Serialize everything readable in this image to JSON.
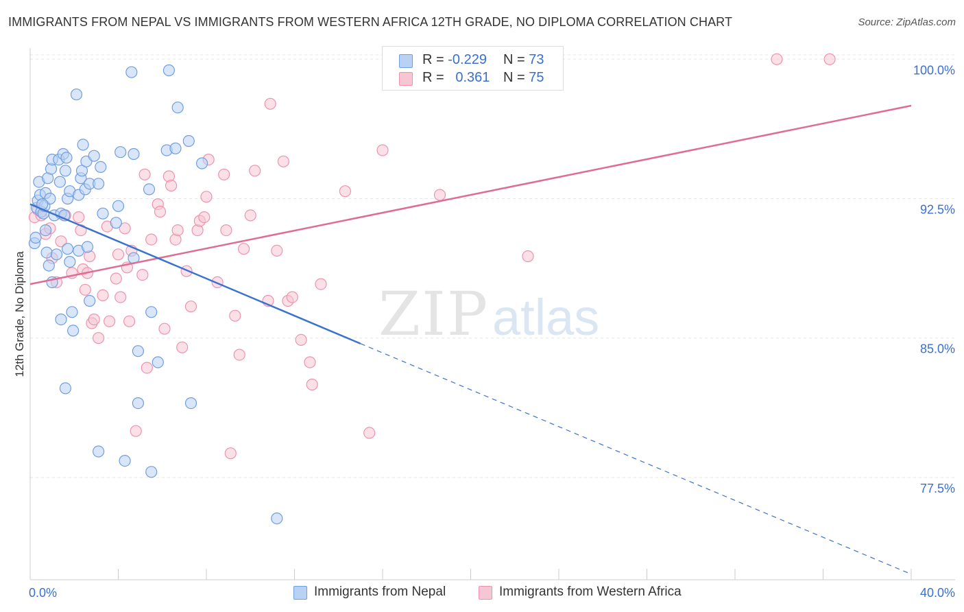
{
  "title": "IMMIGRANTS FROM NEPAL VS IMMIGRANTS FROM WESTERN AFRICA 12TH GRADE, NO DIPLOMA CORRELATION CHART",
  "source": "Source: ZipAtlas.com",
  "watermark": {
    "zip": "ZIP",
    "atlas": "atlas"
  },
  "legend": {
    "nepal": {
      "r_label": "R =",
      "r_value": "-0.229",
      "n_label": "N =",
      "n_value": "73"
    },
    "wafrica": {
      "r_label": "R =",
      "r_value": "0.361",
      "n_label": "N =",
      "n_value": "75"
    }
  },
  "colors": {
    "nepal_fill": "#b9d1f4",
    "nepal_stroke": "#6f9ee0",
    "nepal_line": "#3a72d0",
    "wafrica_fill": "#f7c6d4",
    "wafrica_stroke": "#ec94ae",
    "wafrica_line": "#e06b93",
    "tick_label": "#3a6fd0",
    "grid": "#e6e6e6"
  },
  "chart_data": {
    "type": "scatter",
    "title": "IMMIGRANTS FROM NEPAL VS IMMIGRANTS FROM WESTERN AFRICA 12TH GRADE, NO DIPLOMA CORRELATION CHART",
    "xlabel": "",
    "ylabel": "12th Grade, No Diploma",
    "xlim": [
      0,
      40
    ],
    "ylim": [
      72,
      100.6
    ],
    "x_tick_labels": [
      "0.0%",
      "40.0%"
    ],
    "y_ticks": [
      77.5,
      85.0,
      92.5,
      100.0
    ],
    "y_tick_labels": [
      "77.5%",
      "85.0%",
      "92.5%",
      "100.0%"
    ],
    "grid": true,
    "legend_position": "top-center",
    "series": [
      {
        "name": "Immigrants from Nepal",
        "points": [
          [
            0.2,
            90.1
          ],
          [
            0.25,
            90.4
          ],
          [
            0.3,
            92.0
          ],
          [
            0.35,
            92.4
          ],
          [
            0.4,
            93.4
          ],
          [
            0.45,
            92.7
          ],
          [
            0.5,
            91.8
          ],
          [
            0.6,
            91.7
          ],
          [
            0.65,
            92.1
          ],
          [
            0.7,
            92.8
          ],
          [
            0.7,
            90.8
          ],
          [
            0.75,
            89.6
          ],
          [
            0.8,
            93.6
          ],
          [
            0.85,
            88.9
          ],
          [
            0.9,
            92.5
          ],
          [
            0.95,
            94.1
          ],
          [
            1.0,
            94.6
          ],
          [
            1.0,
            88.0
          ],
          [
            1.1,
            91.6
          ],
          [
            1.2,
            89.5
          ],
          [
            1.3,
            94.6
          ],
          [
            1.35,
            93.4
          ],
          [
            1.4,
            91.7
          ],
          [
            1.4,
            86.0
          ],
          [
            1.5,
            94.9
          ],
          [
            1.55,
            91.6
          ],
          [
            1.6,
            94.0
          ],
          [
            1.65,
            94.7
          ],
          [
            1.7,
            89.8
          ],
          [
            1.7,
            92.5
          ],
          [
            1.8,
            92.9
          ],
          [
            1.8,
            89.1
          ],
          [
            1.9,
            86.4
          ],
          [
            1.95,
            85.4
          ],
          [
            2.1,
            98.1
          ],
          [
            2.2,
            89.7
          ],
          [
            2.2,
            92.7
          ],
          [
            2.3,
            93.6
          ],
          [
            2.35,
            94.0
          ],
          [
            2.4,
            95.4
          ],
          [
            2.5,
            93.0
          ],
          [
            2.55,
            94.5
          ],
          [
            2.6,
            89.9
          ],
          [
            2.7,
            87.0
          ],
          [
            2.7,
            93.3
          ],
          [
            2.9,
            94.8
          ],
          [
            3.1,
            93.3
          ],
          [
            3.2,
            94.2
          ],
          [
            3.3,
            91.7
          ],
          [
            3.9,
            91.2
          ],
          [
            4.0,
            92.1
          ],
          [
            4.1,
            95.0
          ],
          [
            4.3,
            78.4
          ],
          [
            4.6,
            99.3
          ],
          [
            4.7,
            89.3
          ],
          [
            4.7,
            94.9
          ],
          [
            4.9,
            84.3
          ],
          [
            5.4,
            93.0
          ],
          [
            5.5,
            86.4
          ],
          [
            5.5,
            77.8
          ],
          [
            5.8,
            83.7
          ],
          [
            6.2,
            95.1
          ],
          [
            6.3,
            99.4
          ],
          [
            6.6,
            95.2
          ],
          [
            6.7,
            97.4
          ],
          [
            7.2,
            95.6
          ],
          [
            7.3,
            81.5
          ],
          [
            7.8,
            94.4
          ],
          [
            1.6,
            82.3
          ],
          [
            3.1,
            78.9
          ],
          [
            4.9,
            81.5
          ],
          [
            11.2,
            75.3
          ],
          [
            0.55,
            92.2
          ]
        ]
      },
      {
        "name": "Immigrants from Western Africa",
        "points": [
          [
            0.2,
            91.5
          ],
          [
            0.35,
            91.9
          ],
          [
            0.5,
            91.6
          ],
          [
            0.7,
            90.6
          ],
          [
            0.9,
            90.9
          ],
          [
            1.0,
            89.3
          ],
          [
            1.2,
            88.0
          ],
          [
            1.4,
            90.2
          ],
          [
            1.6,
            91.6
          ],
          [
            1.9,
            88.5
          ],
          [
            2.2,
            91.5
          ],
          [
            2.3,
            90.8
          ],
          [
            2.4,
            88.7
          ],
          [
            2.5,
            87.6
          ],
          [
            2.6,
            88.5
          ],
          [
            2.7,
            89.4
          ],
          [
            2.8,
            85.8
          ],
          [
            2.9,
            86.0
          ],
          [
            3.1,
            85.0
          ],
          [
            3.3,
            87.3
          ],
          [
            3.5,
            91.0
          ],
          [
            3.6,
            85.9
          ],
          [
            3.9,
            88.2
          ],
          [
            4.0,
            89.5
          ],
          [
            4.1,
            87.2
          ],
          [
            4.3,
            90.9
          ],
          [
            4.4,
            88.8
          ],
          [
            4.5,
            85.9
          ],
          [
            4.6,
            89.7
          ],
          [
            4.8,
            80.0
          ],
          [
            5.1,
            88.4
          ],
          [
            5.2,
            93.8
          ],
          [
            5.3,
            83.4
          ],
          [
            5.5,
            90.3
          ],
          [
            5.8,
            92.2
          ],
          [
            5.9,
            91.8
          ],
          [
            6.1,
            85.5
          ],
          [
            6.3,
            93.7
          ],
          [
            6.4,
            93.2
          ],
          [
            6.6,
            90.3
          ],
          [
            6.7,
            90.8
          ],
          [
            6.9,
            84.5
          ],
          [
            7.1,
            88.6
          ],
          [
            7.3,
            86.7
          ],
          [
            7.6,
            90.8
          ],
          [
            7.7,
            91.3
          ],
          [
            7.9,
            91.5
          ],
          [
            8.0,
            92.6
          ],
          [
            8.1,
            94.6
          ],
          [
            8.5,
            88.0
          ],
          [
            8.8,
            93.8
          ],
          [
            8.9,
            90.8
          ],
          [
            9.1,
            78.8
          ],
          [
            9.3,
            86.2
          ],
          [
            9.5,
            84.1
          ],
          [
            9.7,
            89.8
          ],
          [
            10.0,
            91.6
          ],
          [
            10.2,
            94.0
          ],
          [
            10.8,
            87.0
          ],
          [
            10.9,
            97.6
          ],
          [
            11.2,
            89.7
          ],
          [
            11.5,
            94.5
          ],
          [
            11.7,
            87.0
          ],
          [
            11.9,
            87.2
          ],
          [
            12.3,
            84.9
          ],
          [
            12.7,
            83.7
          ],
          [
            12.8,
            82.5
          ],
          [
            13.2,
            87.9
          ],
          [
            14.3,
            92.9
          ],
          [
            15.4,
            79.9
          ],
          [
            16.0,
            95.1
          ],
          [
            18.6,
            92.7
          ],
          [
            22.6,
            89.4
          ],
          [
            33.9,
            100.0
          ],
          [
            36.3,
            100.0
          ]
        ]
      }
    ],
    "trend_lines": [
      {
        "series": "Immigrants from Nepal",
        "solid": [
          [
            0,
            92.2
          ],
          [
            15,
            84.7
          ]
        ],
        "dashed": [
          [
            15,
            84.7
          ],
          [
            40,
            72.3
          ]
        ]
      },
      {
        "series": "Immigrants from Western Africa",
        "solid": [
          [
            0,
            87.9
          ],
          [
            40,
            97.5
          ]
        ]
      }
    ]
  },
  "bottom_legend": {
    "nepal_label": "Immigrants from Nepal",
    "wafrica_label": "Immigrants from Western Africa"
  }
}
